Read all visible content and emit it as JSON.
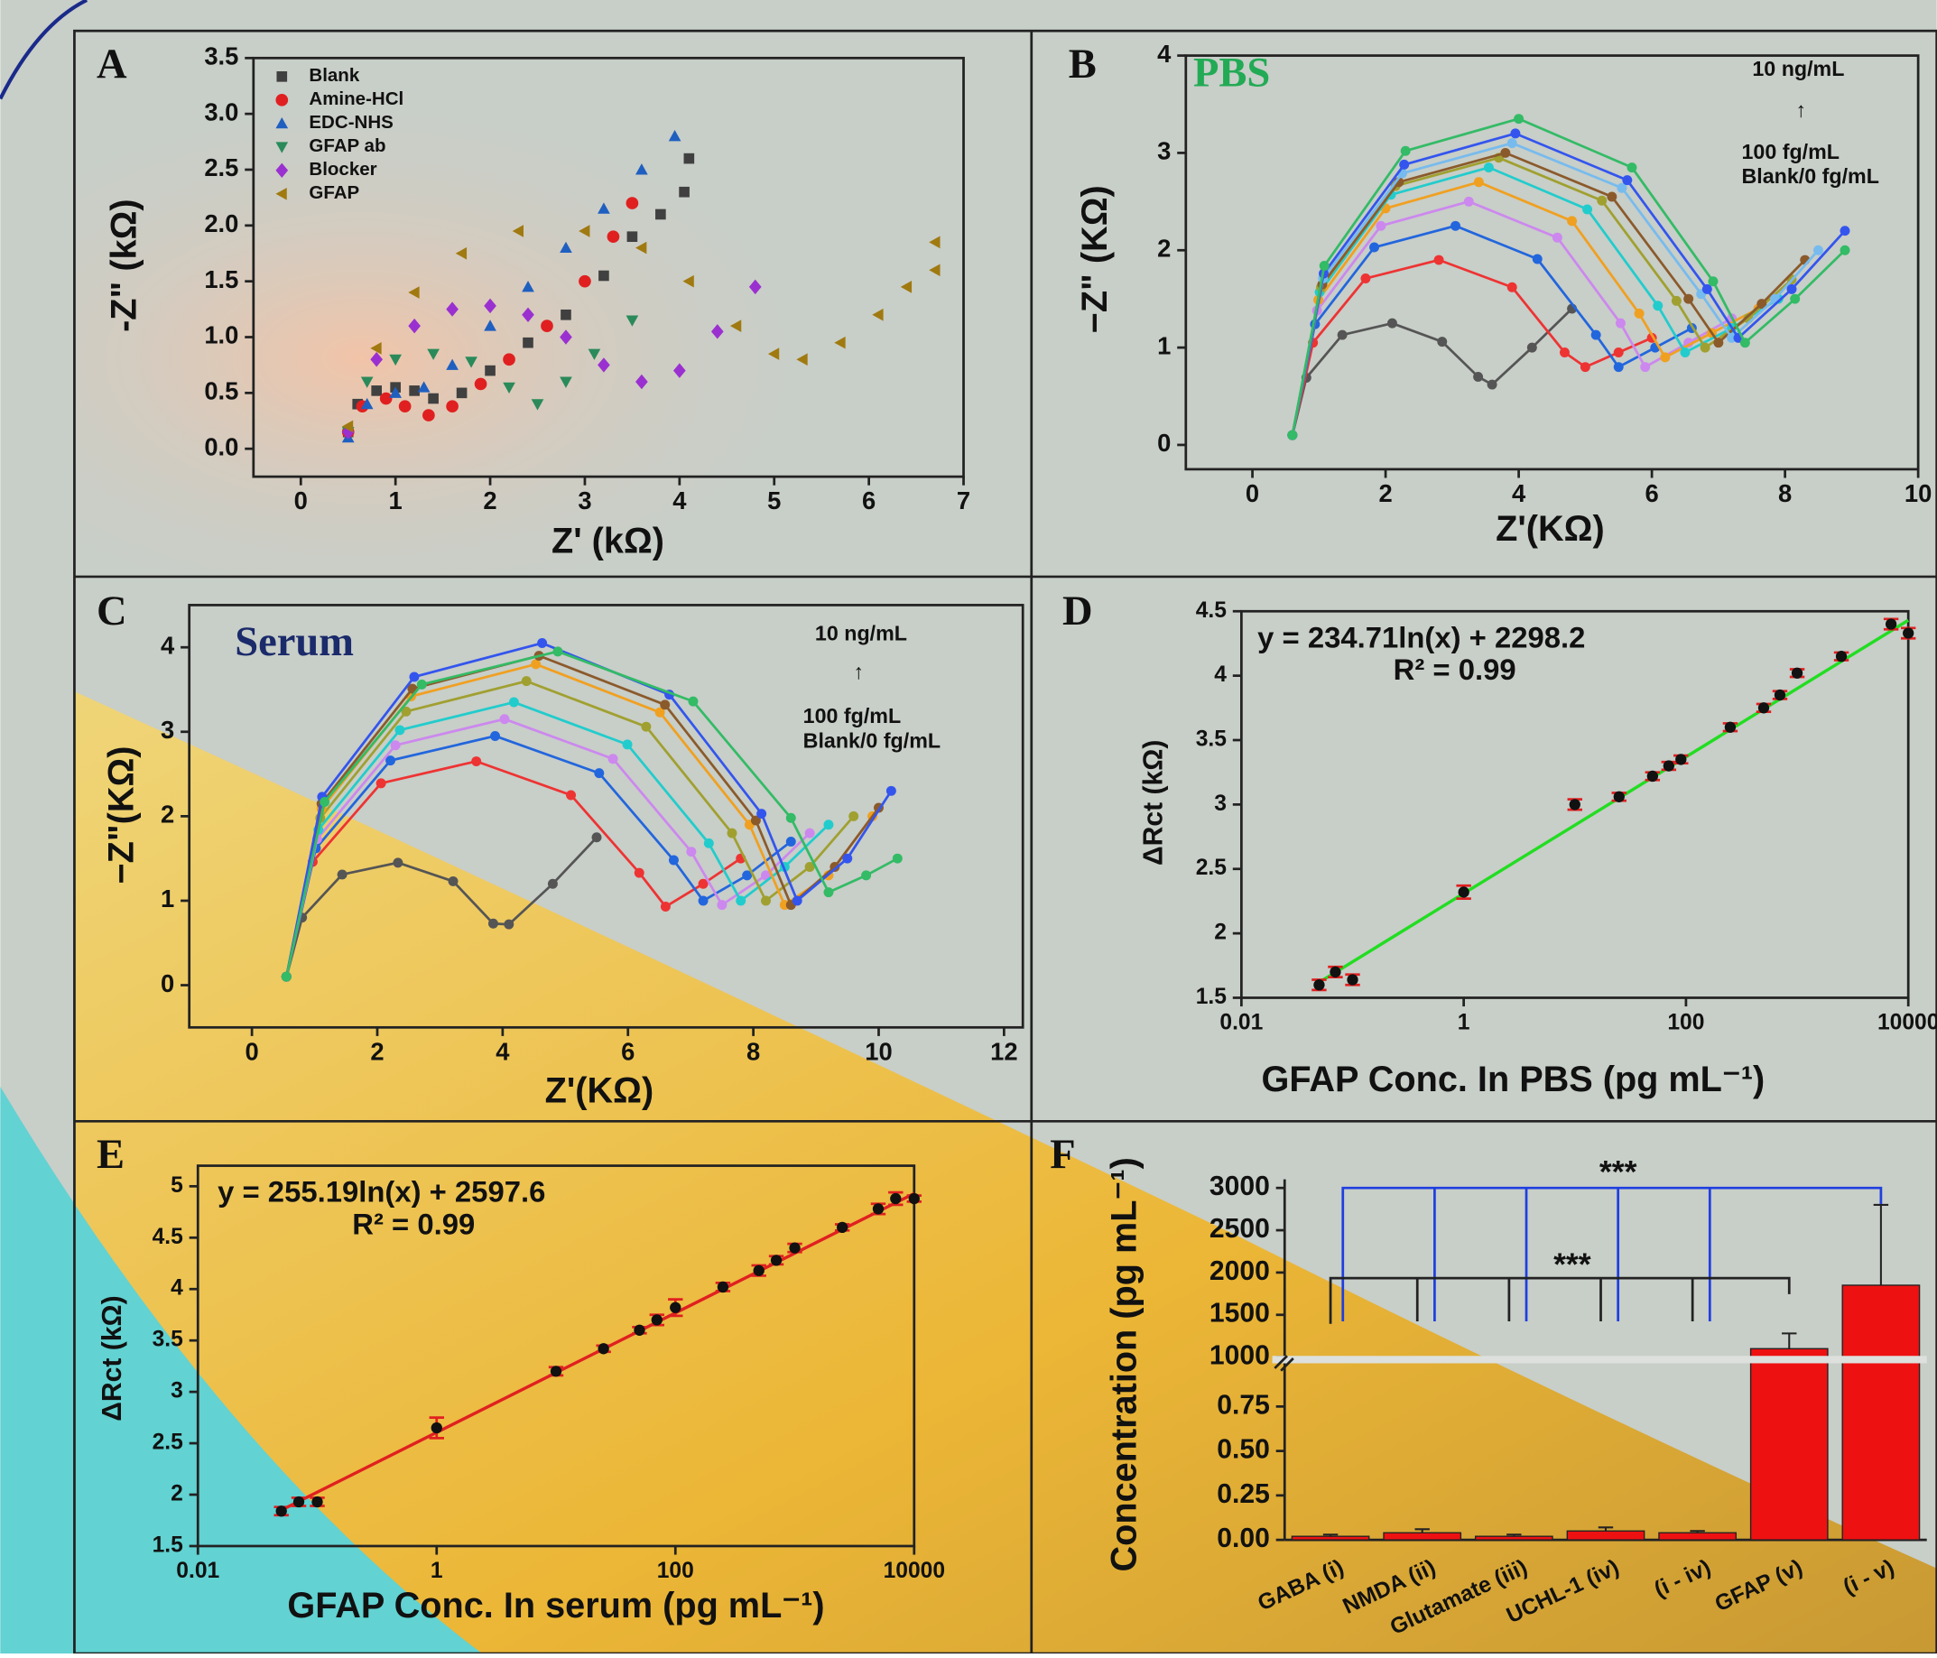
{
  "chart_data": [
    {
      "type": "scatter",
      "label": "A",
      "xlabel": "Z' (kΩ)",
      "ylabel": "-Z\" (kΩ)",
      "xlim": [
        -0.5,
        7
      ],
      "xticks": [
        0,
        1,
        2,
        3,
        4,
        5,
        6,
        7
      ],
      "ylim": [
        -0.25,
        3.5
      ],
      "yticks": [
        {
          "value": 0,
          "label": "0.0"
        },
        0.5,
        {
          "value": 1,
          "label": "1.0"
        },
        1.5,
        {
          "value": 2,
          "label": "2.0"
        },
        2.5,
        {
          "value": 3,
          "label": "3.0"
        },
        3.5
      ],
      "series": [
        {
          "name": "Blank",
          "color": "#404040",
          "marker": "square",
          "x": [
            0.5,
            0.6,
            0.8,
            1.0,
            1.2,
            1.4,
            1.7,
            2.0,
            2.4,
            2.8,
            3.2,
            3.5,
            3.8,
            4.05,
            4.1
          ],
          "values": [
            0.15,
            0.4,
            0.52,
            0.55,
            0.52,
            0.45,
            0.5,
            0.7,
            0.95,
            1.2,
            1.55,
            1.9,
            2.1,
            2.3,
            2.6
          ]
        },
        {
          "name": "Amine-HCl",
          "color": "#e02020",
          "marker": "circle",
          "x": [
            0.5,
            0.65,
            0.9,
            1.1,
            1.35,
            1.6,
            1.9,
            2.2,
            2.6,
            3.0,
            3.3,
            3.5
          ],
          "values": [
            0.15,
            0.38,
            0.45,
            0.38,
            0.3,
            0.38,
            0.58,
            0.8,
            1.1,
            1.5,
            1.9,
            2.2
          ]
        },
        {
          "name": "EDC-NHS",
          "color": "#1f5fc0",
          "marker": "triangle-up",
          "x": [
            0.5,
            0.7,
            1.0,
            1.3,
            1.6,
            2.0,
            2.4,
            2.8,
            3.2,
            3.6,
            3.95
          ],
          "values": [
            0.1,
            0.4,
            0.5,
            0.55,
            0.75,
            1.1,
            1.45,
            1.8,
            2.15,
            2.5,
            2.8
          ]
        },
        {
          "name": "GFAP ab",
          "color": "#2a8a5a",
          "marker": "triangle-down",
          "x": [
            0.5,
            0.7,
            1.0,
            1.4,
            1.8,
            2.2,
            2.5,
            2.8,
            3.1,
            3.5
          ],
          "values": [
            0.15,
            0.6,
            0.8,
            0.85,
            0.78,
            0.55,
            0.4,
            0.6,
            0.85,
            1.15
          ]
        },
        {
          "name": "Blocker",
          "color": "#9b30d0",
          "marker": "diamond",
          "x": [
            0.5,
            0.8,
            1.2,
            1.6,
            2.0,
            2.4,
            2.8,
            3.2,
            3.6,
            4.0,
            4.4,
            4.8
          ],
          "values": [
            0.15,
            0.8,
            1.1,
            1.25,
            1.28,
            1.2,
            1.0,
            0.75,
            0.6,
            0.7,
            1.05,
            1.45
          ]
        },
        {
          "name": "GFAP",
          "color": "#a07a10",
          "marker": "triangle-left",
          "x": [
            0.5,
            0.8,
            1.2,
            1.7,
            2.3,
            3.0,
            3.6,
            4.1,
            4.6,
            5.0,
            5.3,
            5.7,
            6.1,
            6.4,
            6.7,
            6.7
          ],
          "values": [
            0.2,
            0.9,
            1.4,
            1.75,
            1.95,
            1.95,
            1.8,
            1.5,
            1.1,
            0.85,
            0.8,
            0.95,
            1.2,
            1.45,
            1.6,
            1.85
          ]
        }
      ]
    },
    {
      "type": "line",
      "label": "B",
      "title": "PBS",
      "xlabel": "Z'(KΩ)",
      "ylabel": "−Z\" (KΩ)",
      "annotations": [
        "10 ng/mL",
        "↑",
        "100 fg/mL",
        "Blank/0 fg/mL"
      ],
      "xlim": [
        -1,
        10
      ],
      "xticks": [
        0,
        2,
        4,
        6,
        8,
        10
      ],
      "ylim": [
        -0.25,
        4
      ],
      "yticks": [
        0,
        1,
        2,
        3,
        4
      ],
      "series": [
        {
          "color": "#555555",
          "x": [
            0.6,
            0.81,
            1.35,
            2.1,
            2.85,
            3.39,
            3.6,
            4.2,
            4.8
          ],
          "values": [
            0.1,
            0.69,
            1.13,
            1.25,
            1.06,
            0.7,
            0.62,
            1.0,
            1.4
          ]
        },
        {
          "color": "#ee3333",
          "x": [
            0.6,
            0.91,
            1.7,
            2.8,
            3.9,
            4.69,
            5.0,
            5.5,
            6.0
          ],
          "values": [
            0.1,
            1.05,
            1.71,
            1.9,
            1.62,
            0.95,
            0.8,
            0.95,
            1.1
          ]
        },
        {
          "color": "#2266dd",
          "x": [
            0.6,
            0.94,
            1.83,
            3.05,
            4.28,
            5.16,
            5.5,
            6.05,
            6.6
          ],
          "values": [
            0.1,
            1.24,
            2.03,
            2.25,
            1.91,
            1.13,
            0.8,
            1.0,
            1.2
          ]
        },
        {
          "color": "#cc88ee",
          "x": [
            0.6,
            0.97,
            1.93,
            3.25,
            4.58,
            5.53,
            5.9,
            6.55,
            7.2
          ],
          "values": [
            0.1,
            1.38,
            2.25,
            2.5,
            2.13,
            1.25,
            0.8,
            1.05,
            1.3
          ]
        },
        {
          "color": "#f0a020",
          "x": [
            0.6,
            0.99,
            2.0,
            3.4,
            4.8,
            5.81,
            6.2,
            6.9,
            7.6
          ],
          "values": [
            0.1,
            1.49,
            2.43,
            2.7,
            2.3,
            1.35,
            0.9,
            1.15,
            1.4
          ]
        },
        {
          "color": "#22cccc",
          "x": [
            0.6,
            1.01,
            2.08,
            3.55,
            5.03,
            6.09,
            6.5,
            7.2,
            7.9
          ],
          "values": [
            0.1,
            1.57,
            2.57,
            2.85,
            2.42,
            1.43,
            0.95,
            1.2,
            1.5
          ]
        },
        {
          "color": "#a0a030",
          "x": [
            0.6,
            1.03,
            2.15,
            3.7,
            5.25,
            6.37,
            6.8,
            7.45,
            8.1
          ],
          "values": [
            0.1,
            1.62,
            2.66,
            2.95,
            2.51,
            1.48,
            1.0,
            1.3,
            1.7
          ]
        },
        {
          "color": "#8b5a2b",
          "x": [
            0.6,
            1.05,
            2.2,
            3.8,
            5.4,
            6.55,
            7.0,
            7.65,
            8.3
          ],
          "values": [
            0.1,
            1.65,
            2.7,
            3.0,
            2.55,
            1.5,
            1.05,
            1.45,
            1.9
          ]
        },
        {
          "color": "#77bbee",
          "x": [
            0.6,
            1.06,
            2.25,
            3.9,
            5.55,
            6.74,
            7.2,
            7.85,
            8.5
          ],
          "values": [
            0.1,
            1.71,
            2.79,
            3.1,
            2.64,
            1.55,
            1.1,
            1.5,
            2.0
          ]
        },
        {
          "color": "#3355ee",
          "x": [
            0.6,
            1.07,
            2.28,
            3.95,
            5.63,
            6.83,
            7.3,
            8.1,
            8.9
          ],
          "values": [
            0.1,
            1.76,
            2.88,
            3.2,
            2.72,
            1.6,
            1.1,
            1.6,
            2.2
          ]
        },
        {
          "color": "#33bb66",
          "x": [
            0.6,
            1.08,
            2.3,
            4.0,
            5.7,
            6.92,
            7.4,
            8.15,
            8.9
          ],
          "values": [
            0.1,
            1.84,
            3.02,
            3.35,
            2.85,
            1.68,
            1.05,
            1.5,
            2.0
          ]
        }
      ]
    },
    {
      "type": "line",
      "label": "C",
      "title": "Serum",
      "xlabel": "Z'(KΩ)",
      "ylabel": "−Z\"(KΩ)",
      "annotations": [
        "10 ng/mL",
        "↑",
        "100 fg/mL",
        "Blank/0 fg/mL"
      ],
      "xlim": [
        -1,
        12.3
      ],
      "xticks": [
        0,
        2,
        4,
        6,
        8,
        10,
        12
      ],
      "ylim": [
        -0.5,
        4.5
      ],
      "yticks": [
        0,
        1,
        2,
        3,
        4
      ],
      "series": [
        {
          "color": "#555555",
          "x": [
            0.55,
            0.8,
            1.44,
            2.33,
            3.21,
            3.85,
            4.1,
            4.8,
            5.5
          ],
          "values": [
            0.1,
            0.8,
            1.31,
            1.45,
            1.23,
            0.73,
            0.72,
            1.2,
            1.75
          ]
        },
        {
          "color": "#ee3333",
          "x": [
            0.55,
            0.97,
            2.06,
            3.58,
            5.09,
            6.18,
            6.6,
            7.2,
            7.8
          ],
          "values": [
            0.1,
            1.46,
            2.39,
            2.65,
            2.25,
            1.33,
            0.93,
            1.2,
            1.5
          ]
        },
        {
          "color": "#2266dd",
          "x": [
            0.55,
            1.02,
            2.21,
            3.88,
            5.54,
            6.73,
            7.2,
            7.9,
            8.6
          ],
          "values": [
            0.1,
            1.62,
            2.66,
            2.95,
            2.51,
            1.48,
            1.0,
            1.3,
            1.7
          ]
        },
        {
          "color": "#cc88ee",
          "x": [
            0.55,
            1.04,
            2.29,
            4.03,
            5.76,
            7.01,
            7.5,
            8.2,
            8.9
          ],
          "values": [
            0.1,
            1.73,
            2.84,
            3.15,
            2.68,
            1.58,
            0.95,
            1.3,
            1.8
          ]
        },
        {
          "color": "#22cccc",
          "x": [
            0.55,
            1.06,
            2.36,
            4.18,
            5.99,
            7.29,
            7.8,
            8.5,
            9.2
          ],
          "values": [
            0.1,
            1.84,
            3.02,
            3.35,
            2.85,
            1.68,
            1.0,
            1.4,
            1.9
          ]
        },
        {
          "color": "#a0a030",
          "x": [
            0.55,
            1.09,
            2.46,
            4.38,
            6.29,
            7.66,
            8.2,
            8.9,
            9.6
          ],
          "values": [
            0.1,
            1.98,
            3.24,
            3.6,
            3.06,
            1.8,
            1.0,
            1.4,
            2.0
          ]
        },
        {
          "color": "#f0a020",
          "x": [
            0.55,
            1.11,
            2.54,
            4.53,
            6.51,
            7.94,
            8.5,
            9.2,
            9.9
          ],
          "values": [
            0.1,
            2.09,
            3.42,
            3.8,
            3.23,
            1.9,
            0.95,
            1.3,
            2.0
          ]
        },
        {
          "color": "#8b5a2b",
          "x": [
            0.55,
            1.11,
            2.56,
            4.58,
            6.59,
            8.04,
            8.6,
            9.3,
            10.0
          ],
          "values": [
            0.1,
            2.15,
            3.51,
            3.9,
            3.32,
            1.95,
            0.95,
            1.4,
            2.1
          ]
        },
        {
          "color": "#3355ee",
          "x": [
            0.55,
            1.12,
            2.59,
            4.63,
            6.66,
            8.13,
            8.7,
            9.5,
            10.2
          ],
          "values": [
            0.1,
            2.23,
            3.65,
            4.05,
            3.44,
            2.03,
            1.0,
            1.5,
            2.3
          ]
        },
        {
          "color": "#33bb66",
          "x": [
            0.55,
            1.16,
            2.71,
            4.88,
            7.04,
            8.6,
            9.2,
            9.8,
            10.3
          ],
          "values": [
            0.1,
            2.17,
            3.56,
            3.95,
            3.36,
            1.98,
            1.1,
            1.3,
            1.5
          ]
        }
      ]
    },
    {
      "type": "calibration",
      "label": "D",
      "xlabel": "GFAP Conc. In PBS (pg mL⁻¹)",
      "ylabel": "ΔRct (kΩ)",
      "annotations": [
        "y = 234.71ln(x)  + 2298.2",
        "R² = 0.99"
      ],
      "xscale": "log",
      "xlim": [
        0.01,
        10000
      ],
      "xticks": [
        0.01,
        1,
        100,
        10000
      ],
      "ylim": [
        1.5,
        4.5
      ],
      "yticks": [
        1.5,
        2,
        2.5,
        3,
        3.5,
        4,
        4.5
      ],
      "color": "#111111",
      "error_color": "#e02020",
      "fit_color": "#22dd22",
      "x": [
        0.05,
        0.07,
        0.1,
        1,
        10,
        25,
        50,
        70,
        90,
        250,
        500,
        700,
        1000,
        2500,
        7000,
        10000
      ],
      "values": [
        1.6,
        1.7,
        1.64,
        2.32,
        3.0,
        3.06,
        3.22,
        3.3,
        3.35,
        3.6,
        3.75,
        3.85,
        4.02,
        4.15,
        4.4,
        4.33
      ],
      "errors": [
        0.04,
        0.04,
        0.04,
        0.05,
        0.04,
        0.03,
        0.03,
        0.03,
        0.03,
        0.03,
        0.03,
        0.03,
        0.03,
        0.03,
        0.04,
        0.04
      ],
      "fit": {
        "x": [
          0.05,
          10000
        ],
        "values": [
          1.62,
          4.43
        ]
      }
    },
    {
      "type": "calibration",
      "label": "E",
      "xlabel": "GFAP Conc. In serum (pg mL⁻¹)",
      "ylabel": "ΔRct (kΩ)",
      "annotations": [
        "y = 255.19ln(x)  + 2597.6",
        "R² = 0.99"
      ],
      "xscale": "log",
      "xlim": [
        0.01,
        10000
      ],
      "xticks": [
        0.01,
        1,
        100,
        10000
      ],
      "ylim": [
        1.5,
        5.2
      ],
      "yticks": [
        1.5,
        2,
        2.5,
        3,
        3.5,
        4,
        4.5,
        5
      ],
      "color": "#111111",
      "error_color": "#e02020",
      "fit_color": "#e02020",
      "x": [
        0.05,
        0.07,
        0.1,
        1,
        10,
        25,
        50,
        70,
        100,
        250,
        500,
        700,
        1000,
        2500,
        5000,
        7000,
        10000
      ],
      "values": [
        1.84,
        1.93,
        1.93,
        2.65,
        3.2,
        3.42,
        3.6,
        3.7,
        3.82,
        4.02,
        4.18,
        4.28,
        4.4,
        4.6,
        4.78,
        4.88,
        4.88
      ],
      "errors": [
        0.04,
        0.04,
        0.04,
        0.1,
        0.04,
        0.03,
        0.03,
        0.05,
        0.08,
        0.04,
        0.05,
        0.04,
        0.04,
        0.03,
        0.05,
        0.06,
        0.03
      ],
      "fit": {
        "x": [
          0.05,
          10000
        ],
        "values": [
          1.85,
          4.93
        ]
      }
    },
    {
      "type": "bar",
      "label": "F",
      "ylabel": "Concentration (pg mL⁻¹)",
      "color": "#ee1111",
      "annotations": [
        "***",
        "***"
      ],
      "categories": [
        "GABA (i)",
        "NMDA (ii)",
        "Glutamate (iii)",
        "UCHL-1 (iv)",
        "(i - iv)",
        "GFAP (v)",
        "(i - v)"
      ],
      "values": [
        0.02,
        0.04,
        0.02,
        0.05,
        0.04,
        1100,
        1850
      ],
      "errors": [
        0.01,
        0.02,
        0.01,
        0.02,
        0.01,
        180,
        950
      ],
      "ylim": [
        0,
        1
      ],
      "yticks": [
        {
          "value": 0,
          "label": "0.00"
        },
        {
          "value": 0.25,
          "label": "0.25"
        },
        {
          "value": 0.5,
          "label": "0.50"
        },
        {
          "value": 0.75,
          "label": "0.75"
        }
      ],
      "y2lim": [
        1000,
        3000
      ],
      "y2ticks": [
        1000,
        1500,
        2000,
        2500,
        3000
      ]
    }
  ]
}
